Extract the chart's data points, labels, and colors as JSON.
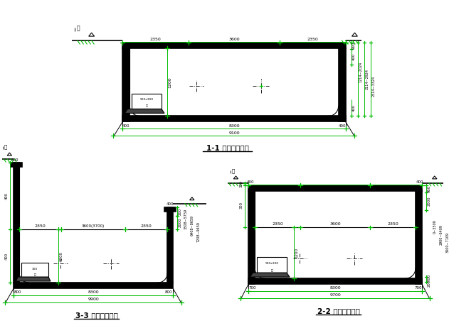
{
  "bg_color": "#ffffff",
  "lc": "#000000",
  "gc": "#00bb00",
  "title1": "1-1 结构横剖面图",
  "title2": "3-3 结构横剖面图",
  "title3": "2-2 结构横剖面图",
  "wall_fill": "#000000",
  "inner_fill": "#ffffff"
}
